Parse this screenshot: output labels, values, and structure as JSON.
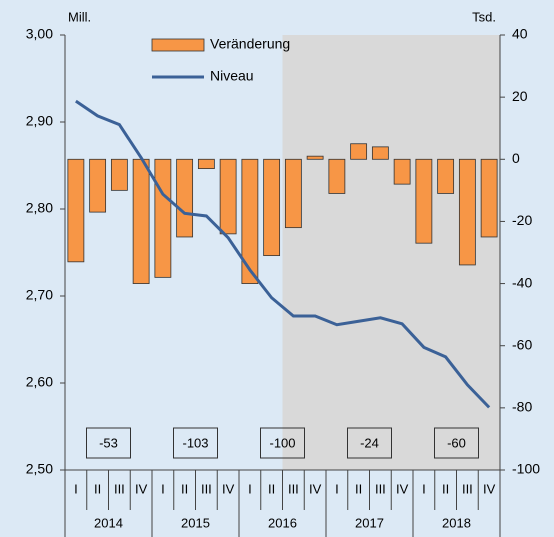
{
  "chart_data": {
    "type": "bar_line",
    "y_label": "Mill.",
    "y2_label": "Tsd.",
    "categories": [
      "I",
      "II",
      "III",
      "IV",
      "I",
      "II",
      "III",
      "IV",
      "I",
      "II",
      "III",
      "IV",
      "I",
      "II",
      "III",
      "IV",
      "I",
      "II",
      "III",
      "IV"
    ],
    "groups": [
      "2014",
      "2015",
      "2016",
      "2017",
      "2018"
    ],
    "series": [
      {
        "name": "Veränderung",
        "type": "bar",
        "axis": "y2",
        "color": "#f79646",
        "values": [
          -33,
          -17,
          -10,
          -40,
          -38,
          -25,
          -3,
          -24,
          -40,
          -31,
          -22,
          1,
          -11,
          5,
          4,
          -8,
          -27,
          -11,
          -34,
          -25
        ]
      },
      {
        "name": "Niveau",
        "type": "line",
        "axis": "y",
        "color": "#3b6197",
        "values": [
          2.924,
          2.907,
          2.897,
          2.859,
          2.817,
          2.795,
          2.792,
          2.767,
          2.73,
          2.698,
          2.677,
          2.677,
          2.667,
          2.671,
          2.675,
          2.668,
          2.641,
          2.63,
          2.598,
          2.572
        ]
      }
    ],
    "annotations": [
      "-53",
      "-103",
      "-100",
      "-24",
      "-60"
    ],
    "ylim": [
      2.5,
      3.0
    ],
    "yticks": [
      {
        "value": 2.5,
        "label": "2,50"
      },
      {
        "value": 2.6,
        "label": "2,60"
      },
      {
        "value": 2.7,
        "label": "2,70"
      },
      {
        "value": 2.8,
        "label": "2,80"
      },
      {
        "value": 2.9,
        "label": "2,90"
      },
      {
        "value": 3.0,
        "label": "3,00"
      }
    ],
    "y2lim": [
      -100,
      40
    ],
    "y2ticks": [
      -100,
      -80,
      -60,
      -40,
      -20,
      0,
      20,
      40
    ]
  }
}
